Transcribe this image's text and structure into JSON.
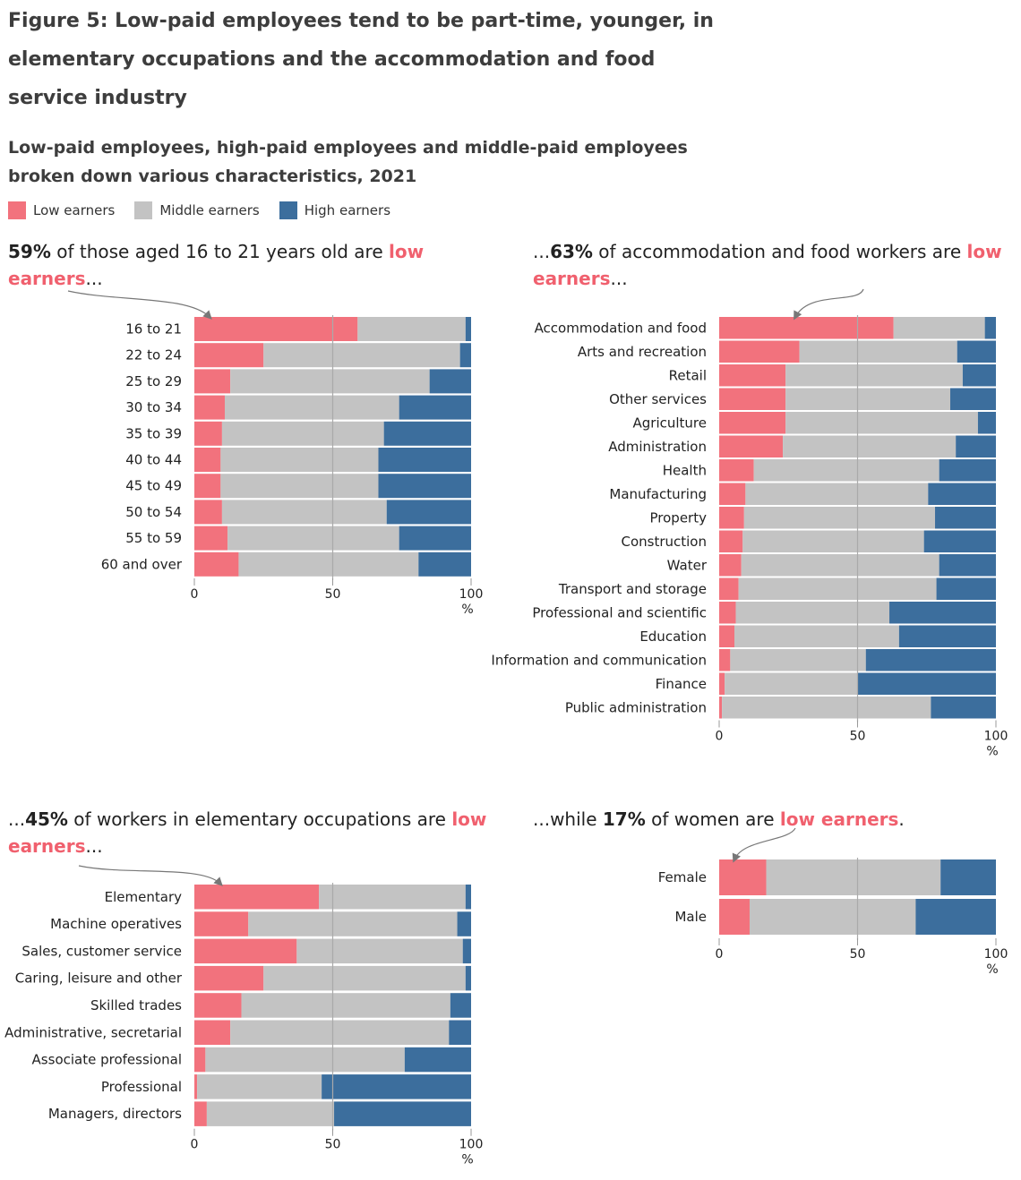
{
  "title": "Figure 5: Low-paid employees tend to be part-time, younger, in elementary occupations and the accommodation and food service industry",
  "subtitle": "Low-paid employees, high-paid employees and middle-paid employees broken down various characteristics, 2021",
  "legend": [
    {
      "label": "Low earners",
      "color": "#f2727d"
    },
    {
      "label": "Middle earners",
      "color": "#c3c3c3"
    },
    {
      "label": "High earners",
      "color": "#3c6e9d"
    }
  ],
  "colors": {
    "low": "#f2727d",
    "middle": "#c3c3c3",
    "high": "#3c6e9d",
    "highlight_text": "#f0606e",
    "axis": "#999999"
  },
  "annotations": {
    "age": {
      "bold": "59%",
      "text": " of those aged 16 to 21 years old are ",
      "highlight": "low earners",
      "suffix": "..."
    },
    "industry": {
      "prefix": "...",
      "bold": "63%",
      "text": " of accommodation and food workers are ",
      "highlight": "low earners",
      "suffix": "..."
    },
    "occupation": {
      "prefix": "...",
      "bold": "45%",
      "text": " of workers in elementary occupations are ",
      "highlight": "low earners",
      "suffix": "..."
    },
    "sex": {
      "prefix": "...while ",
      "bold": "17%",
      "text": " of women are ",
      "highlight": "low earners",
      "suffix": "."
    }
  },
  "chart_data": [
    {
      "type": "bar",
      "orientation": "horizontal",
      "stacked": true,
      "categories": [
        "16 to 21",
        "22 to 24",
        "25 to 29",
        "30 to 34",
        "35 to 39",
        "40 to 44",
        "45 to 49",
        "50 to 54",
        "55 to 59",
        "60 and over"
      ],
      "series": [
        {
          "name": "Low earners",
          "values": [
            59,
            25,
            13,
            11,
            10,
            9.5,
            9.5,
            10,
            12,
            16
          ]
        },
        {
          "name": "Middle earners",
          "values": [
            39,
            71,
            72,
            63,
            58.5,
            57,
            57,
            59.5,
            62,
            65
          ]
        },
        {
          "name": "High earners",
          "values": [
            2,
            4,
            15,
            26,
            31.5,
            33.5,
            33.5,
            30.5,
            26,
            19
          ]
        }
      ],
      "xlim": [
        0,
        100
      ],
      "xticks": [
        0,
        50,
        100
      ],
      "xunit": "%",
      "gridline": 50
    },
    {
      "type": "bar",
      "orientation": "horizontal",
      "stacked": true,
      "categories": [
        "Accommodation and food",
        "Arts and recreation",
        "Retail",
        "Other services",
        "Agriculture",
        "Administration",
        "Health",
        "Manufacturing",
        "Property",
        "Construction",
        "Water",
        "Transport and storage",
        "Professional and scientific",
        "Education",
        "Information and communication",
        "Finance",
        "Public administration"
      ],
      "series": [
        {
          "name": "Low earners",
          "values": [
            63,
            29,
            24,
            24,
            24,
            23,
            12.5,
            9.5,
            9,
            8.5,
            8,
            7,
            6,
            5.5,
            4,
            2,
            1
          ]
        },
        {
          "name": "Middle earners",
          "values": [
            33,
            57,
            64,
            59.5,
            69.5,
            62.5,
            67,
            66,
            69,
            65.5,
            71.5,
            71.5,
            55.5,
            59.5,
            49,
            48,
            75.5
          ]
        },
        {
          "name": "High earners",
          "values": [
            4,
            14,
            12,
            16.5,
            6.5,
            14.5,
            20.5,
            24.5,
            22,
            26,
            20.5,
            21.5,
            38.5,
            35,
            47,
            50,
            23.5
          ]
        }
      ],
      "xlim": [
        0,
        100
      ],
      "xticks": [
        0,
        50,
        100
      ],
      "xunit": "%",
      "gridline": 50
    },
    {
      "type": "bar",
      "orientation": "horizontal",
      "stacked": true,
      "categories": [
        "Elementary",
        "Machine operatives",
        "Sales, customer service",
        "Caring, leisure and other",
        "Skilled trades",
        "Administrative, secretarial",
        "Associate professional",
        "Professional",
        "Managers, directors"
      ],
      "series": [
        {
          "name": "Low earners",
          "values": [
            45,
            19.5,
            37,
            25,
            17,
            13,
            4,
            1,
            4.5
          ]
        },
        {
          "name": "Middle earners",
          "values": [
            53,
            75.5,
            60,
            73,
            75.5,
            79,
            72,
            45,
            46
          ]
        },
        {
          "name": "High earners",
          "values": [
            2,
            5,
            3,
            2,
            7.5,
            8,
            24,
            54,
            49.5
          ]
        }
      ],
      "xlim": [
        0,
        100
      ],
      "xticks": [
        0,
        50,
        100
      ],
      "xunit": "%",
      "gridline": 50
    },
    {
      "type": "bar",
      "orientation": "horizontal",
      "stacked": true,
      "categories": [
        "Female",
        "Male"
      ],
      "series": [
        {
          "name": "Low earners",
          "values": [
            17,
            11
          ]
        },
        {
          "name": "Middle earners",
          "values": [
            63,
            60
          ]
        },
        {
          "name": "High earners",
          "values": [
            20,
            29
          ]
        }
      ],
      "xlim": [
        0,
        100
      ],
      "xticks": [
        0,
        50,
        100
      ],
      "xunit": "%",
      "gridline": 50
    }
  ]
}
